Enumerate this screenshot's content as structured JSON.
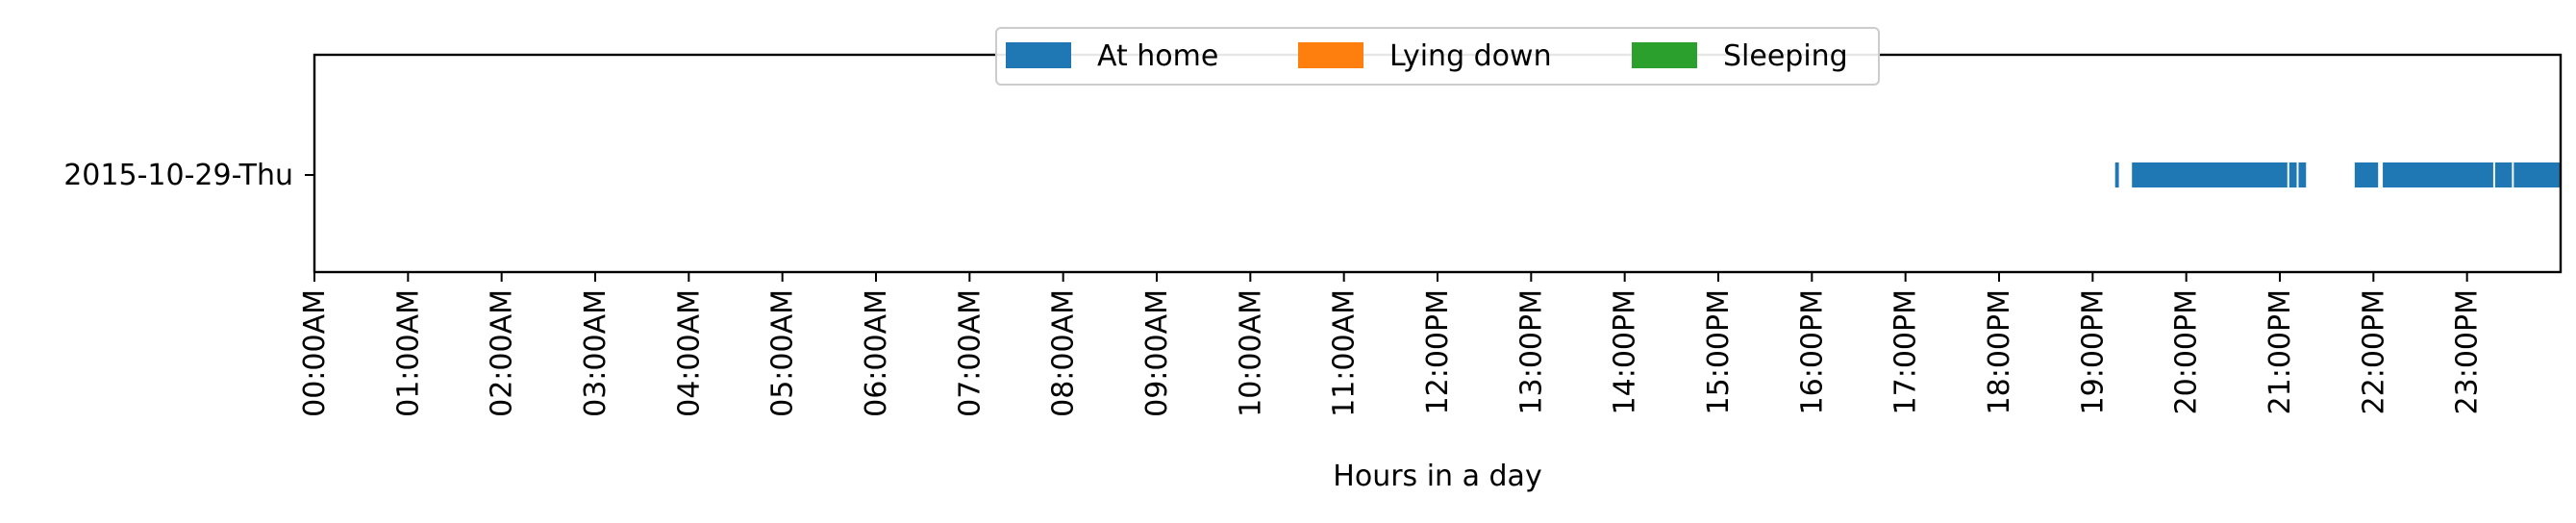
{
  "chart_data": {
    "type": "timeline",
    "title": "",
    "xlabel": "Hours in a day",
    "ylabel": "",
    "xlim": [
      0,
      24
    ],
    "x_unit": "hours",
    "x_tick_labels": [
      "00:00AM",
      "01:00AM",
      "02:00AM",
      "03:00AM",
      "04:00AM",
      "05:00AM",
      "06:00AM",
      "07:00AM",
      "08:00AM",
      "09:00AM",
      "10:00AM",
      "11:00AM",
      "12:00PM",
      "13:00PM",
      "14:00PM",
      "15:00PM",
      "16:00PM",
      "17:00PM",
      "18:00PM",
      "19:00PM",
      "20:00PM",
      "21:00PM",
      "22:00PM",
      "23:00PM"
    ],
    "categories": [
      "2015-10-29-Thu"
    ],
    "legend": {
      "placement": "top-center",
      "entries": [
        {
          "name": "At home",
          "color": "#1f77b4"
        },
        {
          "name": "Lying down",
          "color": "#ff7f0e"
        },
        {
          "name": "Sleeping",
          "color": "#2ca02c"
        }
      ]
    },
    "series": [
      {
        "name": "At home",
        "color": "#1f77b4",
        "row": "2015-10-29-Thu",
        "intervals": [
          [
            19.24,
            19.28
          ],
          [
            19.42,
            21.08
          ],
          [
            21.1,
            21.18
          ],
          [
            21.2,
            21.28
          ],
          [
            21.8,
            22.05
          ],
          [
            22.1,
            23.28
          ],
          [
            23.3,
            23.48
          ],
          [
            23.5,
            24.0
          ]
        ]
      },
      {
        "name": "Lying down",
        "color": "#ff7f0e",
        "row": "2015-10-29-Thu",
        "intervals": []
      },
      {
        "name": "Sleeping",
        "color": "#2ca02c",
        "row": "2015-10-29-Thu",
        "intervals": []
      }
    ]
  }
}
